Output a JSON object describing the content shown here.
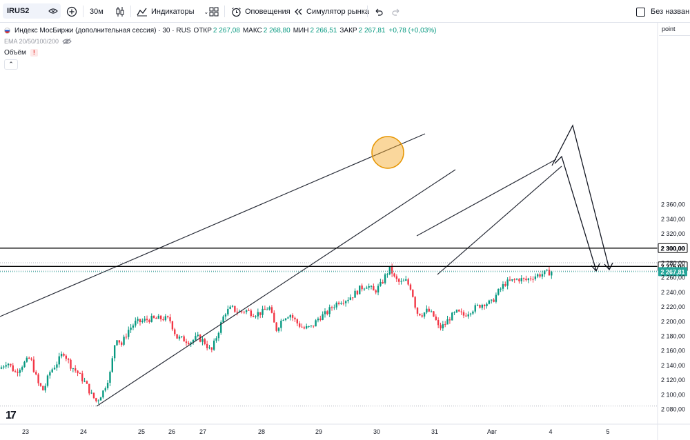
{
  "toolbar": {
    "symbol": "IRUS2",
    "interval": "30м",
    "indicators_label": "Индикаторы",
    "alerts_label": "Оповещения",
    "replay_label": "Симулятор рынка",
    "layout_name": "Без названи"
  },
  "legend": {
    "title": "Индекс МосБиржи (дополнительная сессия) · 30 · RUS",
    "open_label": "ОТКР",
    "open": "2 267,08",
    "high_label": "МАКС",
    "high": "2 268,80",
    "low_label": "МИН",
    "low": "2 266,51",
    "close_label": "ЗАКР",
    "close": "2 267,81",
    "change": "+0,78 (+0,03%)",
    "ema": "EMA 20/50/100/200",
    "volume": "Объём"
  },
  "scale_unit": "point",
  "colors": {
    "up": "#089981",
    "down": "#f23645",
    "accent": "#26a69a",
    "circle": "#f5a623"
  },
  "chart_data": {
    "type": "candlestick",
    "y_ticks": [
      2080,
      2100,
      2120,
      2140,
      2160,
      2180,
      2200,
      2220,
      2240,
      2260,
      2280,
      2300,
      2320,
      2340,
      2360
    ],
    "y_tick_labels": [
      "2 080,00",
      "2 100,00",
      "2 120,00",
      "2 140,00",
      "2 160,00",
      "2 180,00",
      "2 200,00",
      "2 220,00",
      "2 240,00",
      "2 260,00",
      "2 280,00",
      "2 300,00",
      "2 320,00",
      "2 340,00",
      "2 360,00"
    ],
    "ylim": [
      2071,
      2371
    ],
    "x_ticks": [
      "23",
      "24",
      "25",
      "26",
      "27",
      "28",
      "29",
      "30",
      "31",
      "Авг",
      "4",
      "5"
    ],
    "price_labels": [
      {
        "value": 2300,
        "text": "2 300,00",
        "style": "black"
      },
      {
        "value": 2275,
        "text": "2 275,00",
        "style": "black"
      },
      {
        "value": 2267.81,
        "text": "2 267,81",
        "style": "accent"
      }
    ],
    "horizontal_levels": [
      2300,
      2275
    ],
    "dotted_levels": [
      2280,
      2268.8,
      2084
    ],
    "anchors": [
      {
        "x": 0,
        "y": 2135
      },
      {
        "x": 10,
        "y": 2145
      },
      {
        "x": 22,
        "y": 2130
      },
      {
        "x": 32,
        "y": 2140
      },
      {
        "x": 44,
        "y": 2150
      },
      {
        "x": 55,
        "y": 2115
      },
      {
        "x": 63,
        "y": 2105
      },
      {
        "x": 72,
        "y": 2130
      },
      {
        "x": 84,
        "y": 2145
      },
      {
        "x": 92,
        "y": 2158
      },
      {
        "x": 102,
        "y": 2140
      },
      {
        "x": 112,
        "y": 2130
      },
      {
        "x": 124,
        "y": 2115
      },
      {
        "x": 132,
        "y": 2100
      },
      {
        "x": 140,
        "y": 2090
      },
      {
        "x": 150,
        "y": 2105
      },
      {
        "x": 160,
        "y": 2130
      },
      {
        "x": 168,
        "y": 2180
      },
      {
        "x": 176,
        "y": 2168
      },
      {
        "x": 186,
        "y": 2188
      },
      {
        "x": 196,
        "y": 2198
      },
      {
        "x": 206,
        "y": 2200
      },
      {
        "x": 216,
        "y": 2203
      },
      {
        "x": 226,
        "y": 2203
      },
      {
        "x": 236,
        "y": 2204
      },
      {
        "x": 246,
        "y": 2202
      },
      {
        "x": 256,
        "y": 2178
      },
      {
        "x": 266,
        "y": 2175
      },
      {
        "x": 276,
        "y": 2172
      },
      {
        "x": 286,
        "y": 2178
      },
      {
        "x": 296,
        "y": 2172
      },
      {
        "x": 306,
        "y": 2158
      },
      {
        "x": 316,
        "y": 2185
      },
      {
        "x": 326,
        "y": 2212
      },
      {
        "x": 336,
        "y": 2218
      },
      {
        "x": 346,
        "y": 2212
      },
      {
        "x": 356,
        "y": 2215
      },
      {
        "x": 368,
        "y": 2210
      },
      {
        "x": 380,
        "y": 2212
      },
      {
        "x": 390,
        "y": 2220
      },
      {
        "x": 400,
        "y": 2188
      },
      {
        "x": 410,
        "y": 2205
      },
      {
        "x": 420,
        "y": 2210
      },
      {
        "x": 430,
        "y": 2198
      },
      {
        "x": 440,
        "y": 2190
      },
      {
        "x": 452,
        "y": 2192
      },
      {
        "x": 462,
        "y": 2205
      },
      {
        "x": 472,
        "y": 2210
      },
      {
        "x": 482,
        "y": 2220
      },
      {
        "x": 492,
        "y": 2228
      },
      {
        "x": 502,
        "y": 2230
      },
      {
        "x": 512,
        "y": 2236
      },
      {
        "x": 522,
        "y": 2245
      },
      {
        "x": 532,
        "y": 2250
      },
      {
        "x": 542,
        "y": 2240
      },
      {
        "x": 552,
        "y": 2250
      },
      {
        "x": 560,
        "y": 2265
      },
      {
        "x": 566,
        "y": 2272
      },
      {
        "x": 572,
        "y": 2258
      },
      {
        "x": 580,
        "y": 2252
      },
      {
        "x": 588,
        "y": 2255
      },
      {
        "x": 596,
        "y": 2245
      },
      {
        "x": 604,
        "y": 2212
      },
      {
        "x": 612,
        "y": 2210
      },
      {
        "x": 620,
        "y": 2215
      },
      {
        "x": 630,
        "y": 2205
      },
      {
        "x": 636,
        "y": 2190
      },
      {
        "x": 644,
        "y": 2195
      },
      {
        "x": 652,
        "y": 2205
      },
      {
        "x": 662,
        "y": 2212
      },
      {
        "x": 672,
        "y": 2208
      },
      {
        "x": 682,
        "y": 2215
      },
      {
        "x": 692,
        "y": 2220
      },
      {
        "x": 702,
        "y": 2225
      },
      {
        "x": 712,
        "y": 2225
      },
      {
        "x": 722,
        "y": 2240
      },
      {
        "x": 732,
        "y": 2252
      },
      {
        "x": 742,
        "y": 2255
      },
      {
        "x": 752,
        "y": 2258
      },
      {
        "x": 762,
        "y": 2256
      },
      {
        "x": 772,
        "y": 2261
      },
      {
        "x": 782,
        "y": 2264
      },
      {
        "x": 792,
        "y": 2266
      },
      {
        "x": 800,
        "y": 2268
      }
    ]
  }
}
